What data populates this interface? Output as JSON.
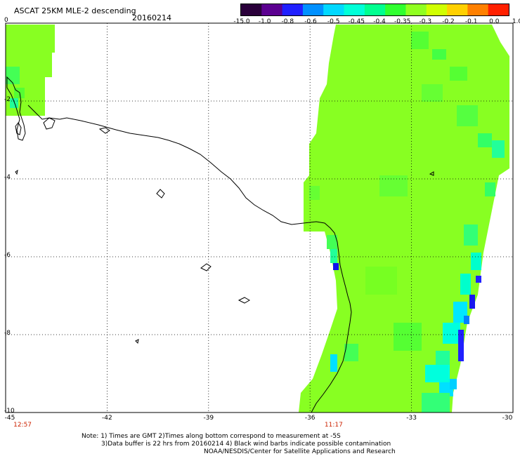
{
  "header": {
    "title": "ASCAT 25KM MLE-2 descending",
    "date": "20160214"
  },
  "colorbar": {
    "labels": [
      "-15.0",
      "-1.0",
      "-0.8",
      "-0.6",
      "-0.5",
      "-0.45",
      "-0.4",
      "-0.35",
      "-0.3",
      "-0.2",
      "-0.1",
      "0.0",
      "1.0"
    ],
    "colors": [
      "#2a003a",
      "#5b0090",
      "#2020ff",
      "#0090ff",
      "#00d8ff",
      "#00ffd8",
      "#00ff90",
      "#30ff30",
      "#90ff20",
      "#d0ff00",
      "#ffd000",
      "#ff8000",
      "#ff2000"
    ]
  },
  "map": {
    "x_ticks": [
      "-45",
      "-42",
      "-39",
      "-36",
      "-33",
      "-30"
    ],
    "y_ticks": [
      "0",
      "-2",
      "-4",
      "-6",
      "-8",
      "-10"
    ],
    "x_range": [
      -45,
      -30
    ],
    "y_range": [
      -10,
      0
    ],
    "gridlines": true,
    "swath_color": "#88ff22",
    "times": [
      {
        "label": "12:57",
        "lon": -44.5
      },
      {
        "label": "11:17",
        "lon": -35.3
      }
    ]
  },
  "notes": {
    "line1": "Note: 1) Times are GMT 2)Times along bottom correspond to measurement at -5S",
    "line2": "3)Data buffer is 22 hrs from 20160214 4) Black wind barbs indicate possible contamination",
    "line3": "NOAA/NESDIS/Center for Satellite Applications and Research"
  }
}
